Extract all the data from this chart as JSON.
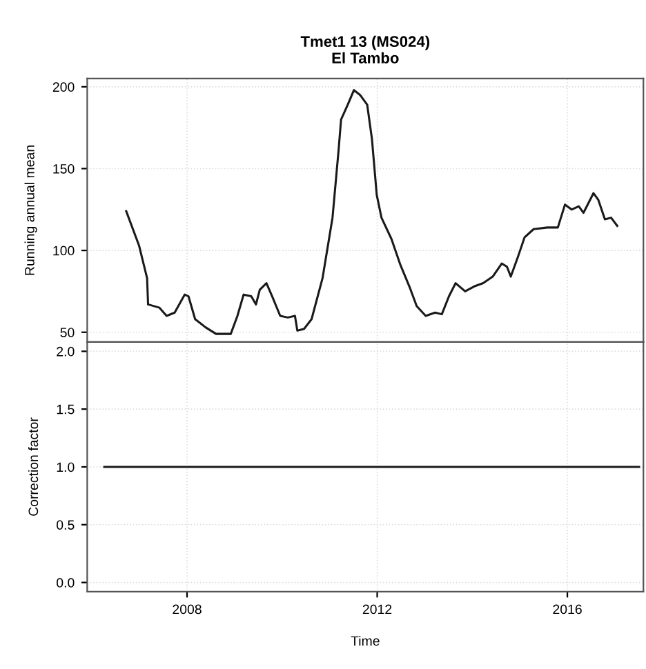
{
  "chart_data": [
    {
      "type": "line",
      "title": "Tmet1 13 (MS024)",
      "subtitle": "El Tambo",
      "ylabel": "Running annual mean",
      "xlim": [
        2005.9,
        2017.6
      ],
      "xticks": [
        {
          "value": 2008,
          "label": null
        },
        {
          "value": 2012,
          "label": null
        },
        {
          "value": 2016,
          "label": null
        }
      ],
      "ylim": [
        44,
        205
      ],
      "yticks": [
        50,
        100,
        150,
        200
      ],
      "grid": true,
      "tick_labels": "y",
      "series": [
        {
          "color": "#1a1a1a",
          "x": [
            2006.72,
            2006.99,
            2007.16,
            2007.18,
            2007.42,
            2007.57,
            2007.74,
            2007.95,
            2008.03,
            2008.17,
            2008.39,
            2008.61,
            2008.92,
            2009.06,
            2009.19,
            2009.35,
            2009.45,
            2009.53,
            2009.67,
            2009.79,
            2009.96,
            2010.12,
            2010.27,
            2010.32,
            2010.46,
            2010.62,
            2010.85,
            2011.06,
            2011.19,
            2011.24,
            2011.38,
            2011.51,
            2011.64,
            2011.79,
            2011.89,
            2011.99,
            2012.09,
            2012.3,
            2012.49,
            2012.69,
            2012.83,
            2013.02,
            2013.22,
            2013.36,
            2013.51,
            2013.65,
            2013.85,
            2014.04,
            2014.23,
            2014.43,
            2014.62,
            2014.73,
            2014.81,
            2014.96,
            2015.1,
            2015.29,
            2015.58,
            2015.8,
            2015.95,
            2016.09,
            2016.24,
            2016.34,
            2016.55,
            2016.65,
            2016.79,
            2016.92,
            2017.05
          ],
          "values": [
            124,
            103,
            83,
            67,
            65,
            60,
            62,
            73,
            72,
            58,
            53,
            49,
            49,
            60,
            73,
            72,
            67,
            76,
            80,
            72,
            60,
            59,
            60,
            51,
            52,
            58,
            83,
            120,
            162,
            180,
            189,
            198,
            195,
            189,
            168,
            134,
            120,
            107,
            91,
            77,
            66,
            60,
            62,
            61,
            72,
            80,
            75,
            78,
            80,
            84,
            92,
            90,
            84,
            96,
            108,
            113,
            114,
            114,
            128,
            125,
            127,
            123,
            135,
            131,
            119,
            120,
            115
          ]
        }
      ]
    },
    {
      "type": "line",
      "xlabel": "Time",
      "ylabel": "Correction factor",
      "xlim": [
        2005.9,
        2017.6
      ],
      "xticks": [
        2008,
        2012,
        2016
      ],
      "ylim": [
        -0.08,
        2.08
      ],
      "yticks": [
        {
          "value": 0,
          "label": "0.0"
        },
        {
          "value": 0.5,
          "label": "0.5"
        },
        {
          "value": 1,
          "label": "1.0"
        },
        {
          "value": 1.5,
          "label": "1.5"
        },
        {
          "value": 2,
          "label": "2.0"
        }
      ],
      "grid": true,
      "series": [
        {
          "color": "#1a1a1a",
          "x": [
            2006.26,
            2017.51
          ],
          "values": [
            1,
            1
          ]
        }
      ]
    }
  ]
}
